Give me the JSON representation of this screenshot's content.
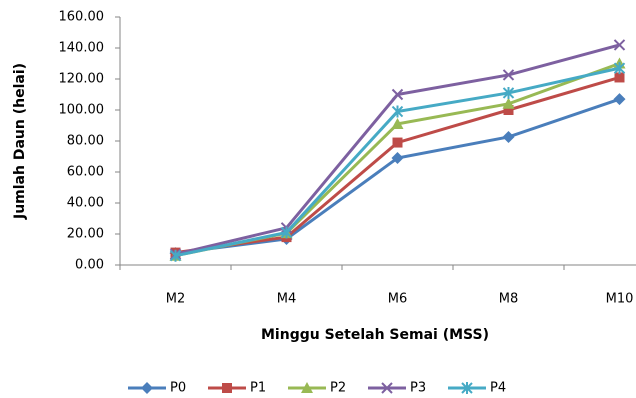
{
  "chart_data": {
    "type": "line",
    "y_label": "Jumlah Daun (helai)",
    "x_label": "Minggu Setelah Semai (MSS)",
    "categories": [
      "M2",
      "M4",
      "M6",
      "M8",
      "M10"
    ],
    "series": [
      {
        "name": "P0",
        "color": "#4a7ebb",
        "marker": "diamond",
        "values": [
          7.7,
          16.8,
          69,
          82.6,
          107
        ]
      },
      {
        "name": "P1",
        "color": "#be4b48",
        "marker": "square",
        "values": [
          8,
          18,
          79,
          100,
          121
        ]
      },
      {
        "name": "P2",
        "color": "#98b954",
        "marker": "triangle",
        "values": [
          6,
          20.6,
          91,
          104,
          130
        ]
      },
      {
        "name": "P3",
        "color": "#7d60a0",
        "marker": "x",
        "values": [
          7,
          24,
          110,
          122.6,
          142
        ]
      },
      {
        "name": "P4",
        "color": "#46aac5",
        "marker": "star",
        "values": [
          6,
          21,
          99,
          111,
          127
        ]
      }
    ],
    "ylim": [
      0,
      160
    ],
    "yticks": [
      {
        "value": 0,
        "label": "0.00"
      },
      {
        "value": 20,
        "label": "20.00"
      },
      {
        "value": 40,
        "label": "40.00"
      },
      {
        "value": 60,
        "label": "60.00"
      },
      {
        "value": 80,
        "label": "80.00"
      },
      {
        "value": 100,
        "label": "100.00"
      },
      {
        "value": 120,
        "label": "120.00"
      },
      {
        "value": 140,
        "label": "140.00"
      },
      {
        "value": 160,
        "label": "160.00"
      }
    ],
    "legend": "bottom"
  }
}
